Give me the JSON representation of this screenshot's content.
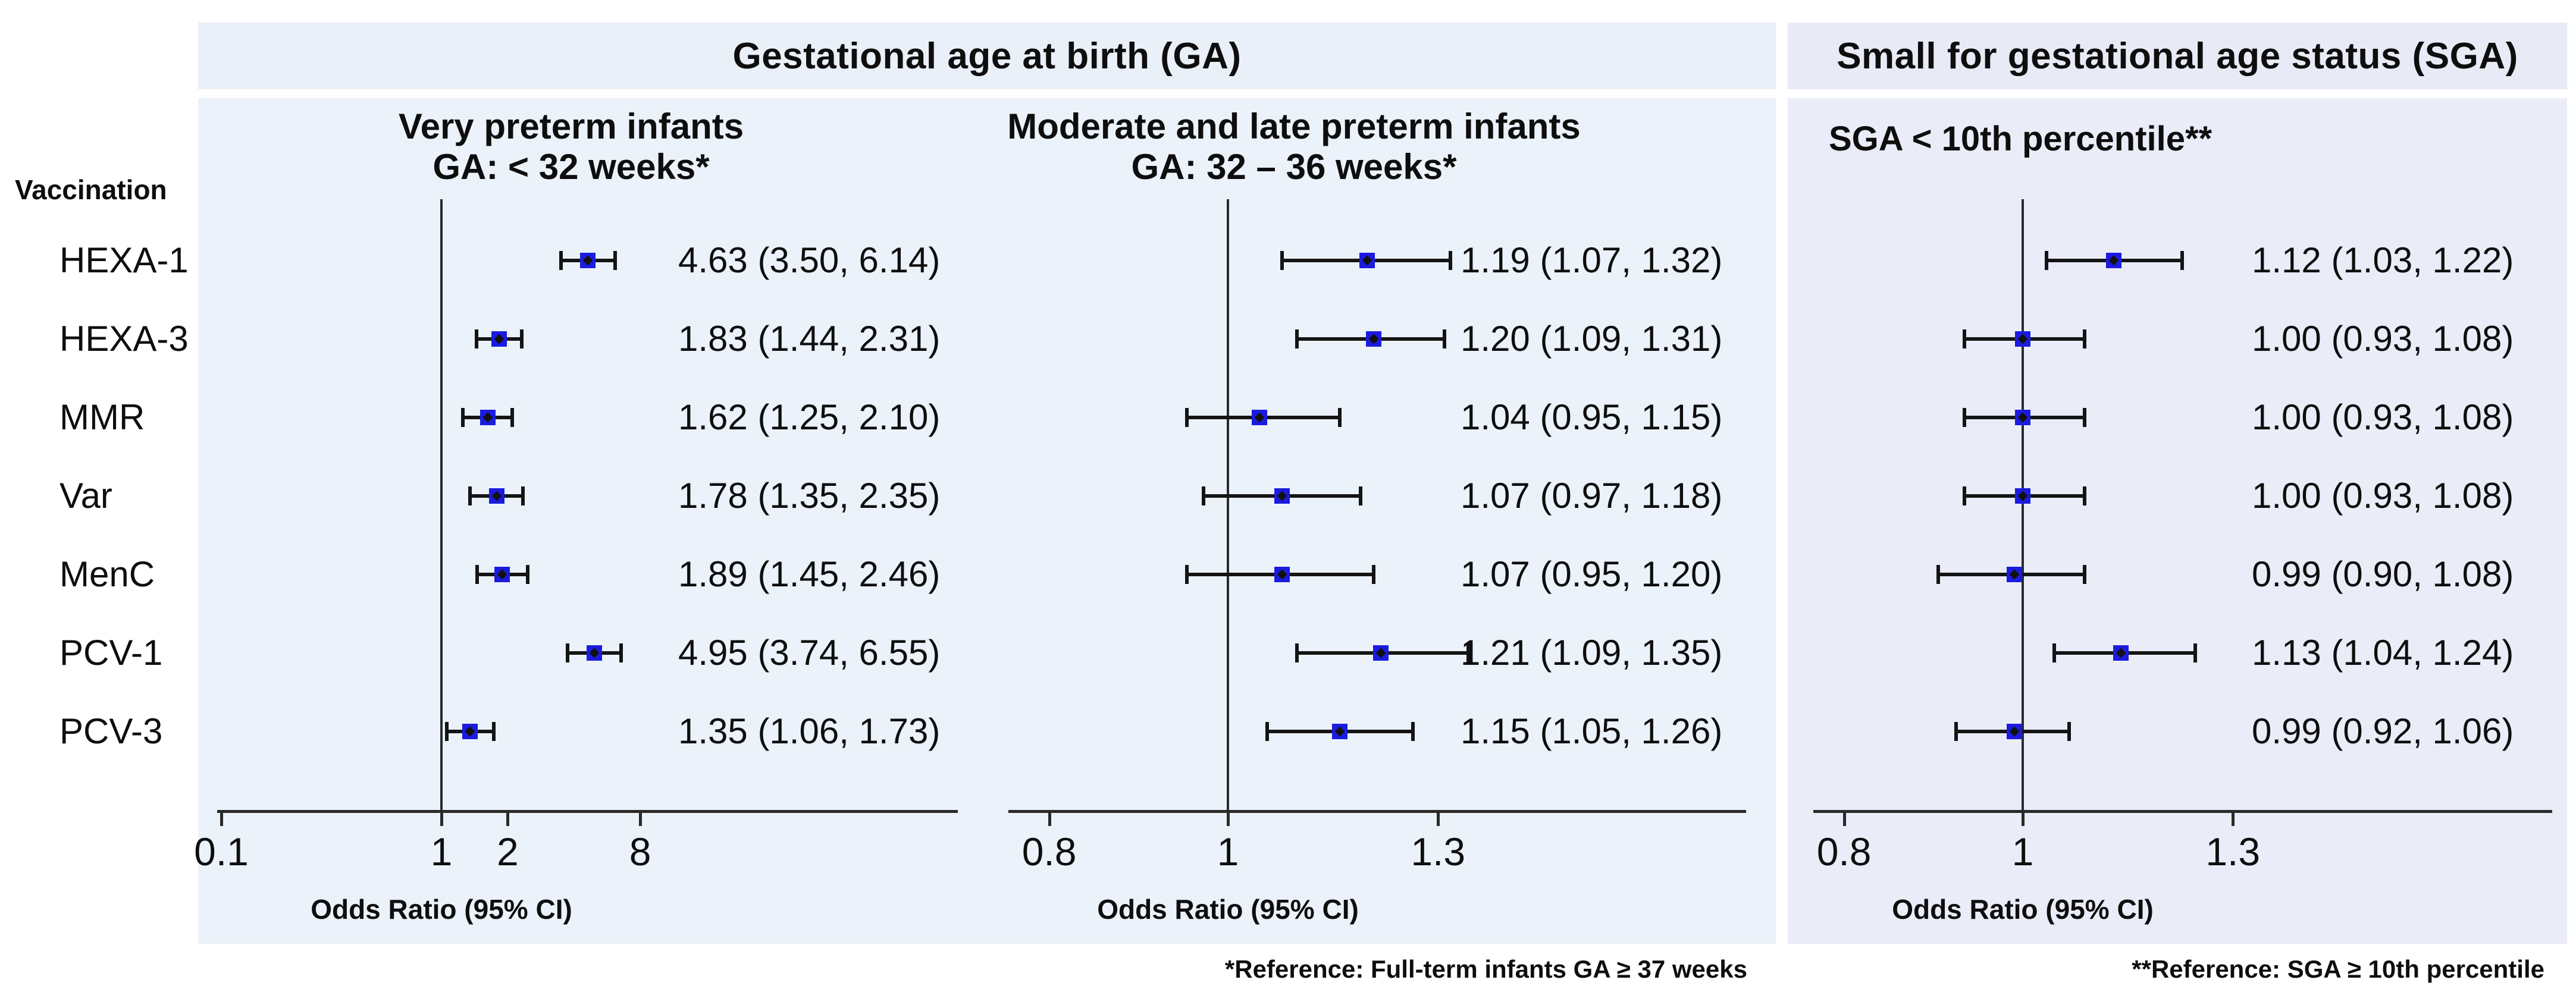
{
  "header": {
    "ga_title": "Gestational age at birth (GA)",
    "sga_title": "Small for gestational age status (SGA)"
  },
  "left_column": {
    "header": "Vaccination"
  },
  "vaccines": [
    "HEXA-1",
    "HEXA-3",
    "MMR",
    "Var",
    "MenC",
    "PCV-1",
    "PCV-3"
  ],
  "footnotes": {
    "ga": "*Reference: Full-term infants GA ≥ 37 weeks",
    "sga": "**Reference: SGA ≥ 10th percentile"
  },
  "colors": {
    "ga_band_bg": "#e9f0f8",
    "ga_main_bg": "#ebf2f9",
    "sga_band_bg": "#e8eaf6",
    "sga_main_bg": "#eaecf8",
    "marker_blue": "#1b1be0",
    "line_black": "#141414"
  },
  "chart_data": [
    {
      "type": "forest",
      "group": "Gestational age at birth (GA)",
      "subtitle_lines": [
        "Very preterm infants",
        "GA: < 32 weeks*"
      ],
      "xlabel": "Odds Ratio (95% CI)",
      "scale": "log",
      "ref_line_value": 1,
      "x_tick_values": [
        0.1,
        1,
        2,
        8
      ],
      "x_tick_labels": [
        "0.1",
        "1",
        "2",
        "8"
      ],
      "rows": [
        {
          "vaccine": "HEXA-1",
          "or": 4.63,
          "ci_low": 3.5,
          "ci_high": 6.14,
          "label": "4.63 (3.50, 6.14)"
        },
        {
          "vaccine": "HEXA-3",
          "or": 1.83,
          "ci_low": 1.44,
          "ci_high": 2.31,
          "label": "1.83 (1.44, 2.31)"
        },
        {
          "vaccine": "MMR",
          "or": 1.62,
          "ci_low": 1.25,
          "ci_high": 2.1,
          "label": "1.62 (1.25, 2.10)"
        },
        {
          "vaccine": "Var",
          "or": 1.78,
          "ci_low": 1.35,
          "ci_high": 2.35,
          "label": "1.78 (1.35, 2.35)"
        },
        {
          "vaccine": "MenC",
          "or": 1.89,
          "ci_low": 1.45,
          "ci_high": 2.46,
          "label": "1.89 (1.45, 2.46)"
        },
        {
          "vaccine": "PCV-1",
          "or": 4.95,
          "ci_low": 3.74,
          "ci_high": 6.55,
          "label": "4.95 (3.74, 6.55)"
        },
        {
          "vaccine": "PCV-3",
          "or": 1.35,
          "ci_low": 1.06,
          "ci_high": 1.73,
          "label": "1.35 (1.06, 1.73)"
        }
      ]
    },
    {
      "type": "forest",
      "group": "Gestational age at birth (GA)",
      "subtitle_lines": [
        "Moderate and late preterm infants",
        "GA: 32 – 36 weeks*"
      ],
      "xlabel": "Odds Ratio (95% CI)",
      "scale": "log",
      "ref_line_value": 1,
      "x_tick_values": [
        0.8,
        1,
        1.3
      ],
      "x_tick_labels": [
        "0.8",
        "1",
        "1.3"
      ],
      "rows": [
        {
          "vaccine": "HEXA-1",
          "or": 1.19,
          "ci_low": 1.07,
          "ci_high": 1.32,
          "label": "1.19 (1.07, 1.32)"
        },
        {
          "vaccine": "HEXA-3",
          "or": 1.2,
          "ci_low": 1.09,
          "ci_high": 1.31,
          "label": "1.20 (1.09, 1.31)"
        },
        {
          "vaccine": "MMR",
          "or": 1.04,
          "ci_low": 0.95,
          "ci_high": 1.15,
          "label": "1.04 (0.95, 1.15)"
        },
        {
          "vaccine": "Var",
          "or": 1.07,
          "ci_low": 0.97,
          "ci_high": 1.18,
          "label": "1.07 (0.97, 1.18)"
        },
        {
          "vaccine": "MenC",
          "or": 1.07,
          "ci_low": 0.95,
          "ci_high": 1.2,
          "label": "1.07 (0.95, 1.20)"
        },
        {
          "vaccine": "PCV-1",
          "or": 1.21,
          "ci_low": 1.09,
          "ci_high": 1.35,
          "label": "1.21 (1.09, 1.35)"
        },
        {
          "vaccine": "PCV-3",
          "or": 1.15,
          "ci_low": 1.05,
          "ci_high": 1.26,
          "label": "1.15 (1.05, 1.26)"
        }
      ]
    },
    {
      "type": "forest",
      "group": "Small for gestational age status (SGA)",
      "subtitle_lines": [
        "SGA < 10th percentile**"
      ],
      "xlabel": "Odds Ratio (95% CI)",
      "scale": "log",
      "ref_line_value": 1,
      "x_tick_values": [
        0.8,
        1,
        1.3
      ],
      "x_tick_labels": [
        "0.8",
        "1",
        "1.3"
      ],
      "rows": [
        {
          "vaccine": "HEXA-1",
          "or": 1.12,
          "ci_low": 1.03,
          "ci_high": 1.22,
          "label": "1.12 (1.03, 1.22)"
        },
        {
          "vaccine": "HEXA-3",
          "or": 1.0,
          "ci_low": 0.93,
          "ci_high": 1.08,
          "label": "1.00 (0.93, 1.08)"
        },
        {
          "vaccine": "MMR",
          "or": 1.0,
          "ci_low": 0.93,
          "ci_high": 1.08,
          "label": "1.00 (0.93, 1.08)"
        },
        {
          "vaccine": "Var",
          "or": 1.0,
          "ci_low": 0.93,
          "ci_high": 1.08,
          "label": "1.00 (0.93, 1.08)"
        },
        {
          "vaccine": "MenC",
          "or": 0.99,
          "ci_low": 0.9,
          "ci_high": 1.08,
          "label": "0.99 (0.90, 1.08)"
        },
        {
          "vaccine": "PCV-1",
          "or": 1.13,
          "ci_low": 1.04,
          "ci_high": 1.24,
          "label": "1.13 (1.04, 1.24)"
        },
        {
          "vaccine": "PCV-3",
          "or": 0.99,
          "ci_low": 0.92,
          "ci_high": 1.06,
          "label": "0.99 (0.92, 1.06)"
        }
      ]
    }
  ]
}
